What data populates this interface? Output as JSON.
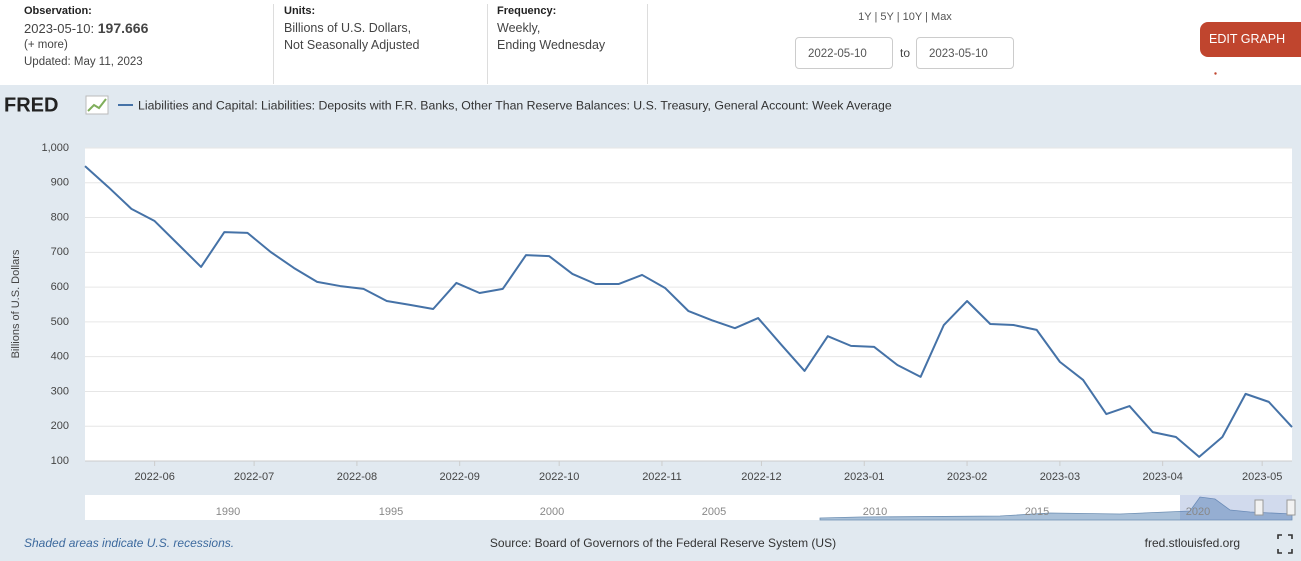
{
  "observation": {
    "label": "Observation:",
    "date": "2023-05-10:",
    "value": "197.666",
    "more": "(+ more)",
    "updated": "Updated: May 11, 2023"
  },
  "units": {
    "label": "Units:",
    "lines": [
      "Billions of U.S. Dollars,",
      "Not Seasonally Adjusted"
    ]
  },
  "frequency": {
    "label": "Frequency:",
    "lines": [
      "Weekly,",
      "Ending Wednesday"
    ]
  },
  "range_buttons": [
    "1Y",
    "5Y",
    "10Y",
    "Max"
  ],
  "date_from": "2022-05-10",
  "date_to_label": "to",
  "date_to": "2023-05-10",
  "edit_button": "EDIT GRAPH",
  "logo": "FRED",
  "navigator_labels": [
    "1990",
    "1995",
    "2000",
    "2005",
    "2010",
    "2015",
    "2020"
  ],
  "footer": {
    "recession_note": "Shaded areas indicate U.S. recessions.",
    "source": "Source: Board of Governors of the Federal Reserve System (US)",
    "site": "fred.stlouisfed.org"
  },
  "chart_data": {
    "type": "line",
    "ylabel": "Billions of U.S. Dollars",
    "x": [
      "2022-05-11",
      "2022-05-18",
      "2022-05-25",
      "2022-06-01",
      "2022-06-08",
      "2022-06-15",
      "2022-06-22",
      "2022-06-29",
      "2022-07-06",
      "2022-07-13",
      "2022-07-20",
      "2022-07-27",
      "2022-08-03",
      "2022-08-10",
      "2022-08-17",
      "2022-08-24",
      "2022-08-31",
      "2022-09-07",
      "2022-09-14",
      "2022-09-21",
      "2022-09-28",
      "2022-10-05",
      "2022-10-12",
      "2022-10-19",
      "2022-10-26",
      "2022-11-02",
      "2022-11-09",
      "2022-11-16",
      "2022-11-23",
      "2022-11-30",
      "2022-12-07",
      "2022-12-14",
      "2022-12-21",
      "2022-12-28",
      "2023-01-04",
      "2023-01-11",
      "2023-01-18",
      "2023-01-25",
      "2023-02-01",
      "2023-02-08",
      "2023-02-15",
      "2023-02-22",
      "2023-03-01",
      "2023-03-08",
      "2023-03-15",
      "2023-03-22",
      "2023-03-29",
      "2023-04-05",
      "2023-04-12",
      "2023-04-19",
      "2023-04-26",
      "2023-05-03",
      "2023-05-10"
    ],
    "series": [
      {
        "name": "Liabilities and Capital: Liabilities: Deposits with F.R. Banks, Other Than Reserve Balances: U.S. Treasury, General Account: Week Average",
        "color": "#4572a7",
        "values": [
          948,
          888,
          825,
          790,
          724,
          658,
          758,
          756,
          701,
          655,
          615,
          603,
          595,
          560,
          549,
          537,
          612,
          583,
          595,
          692,
          689,
          638,
          609,
          609,
          635,
          597,
          531,
          505,
          482,
          511,
          434,
          359,
          459,
          431,
          428,
          376,
          342,
          491,
          560,
          494,
          491,
          477,
          385,
          333,
          235,
          258,
          183,
          169,
          112,
          169,
          293,
          270,
          197.666
        ]
      }
    ],
    "xlim": [
      "2022-05-11",
      "2023-05-10"
    ],
    "xticks": [
      "2022-06",
      "2022-07",
      "2022-08",
      "2022-09",
      "2022-10",
      "2022-11",
      "2022-12",
      "2023-01",
      "2023-02",
      "2023-03",
      "2023-04",
      "2023-05"
    ],
    "ylim": [
      100,
      1000
    ],
    "yticks": [
      100,
      200,
      300,
      400,
      500,
      600,
      700,
      800,
      900,
      {
        "value": 1000,
        "label": "1,000"
      }
    ],
    "grid": true
  }
}
